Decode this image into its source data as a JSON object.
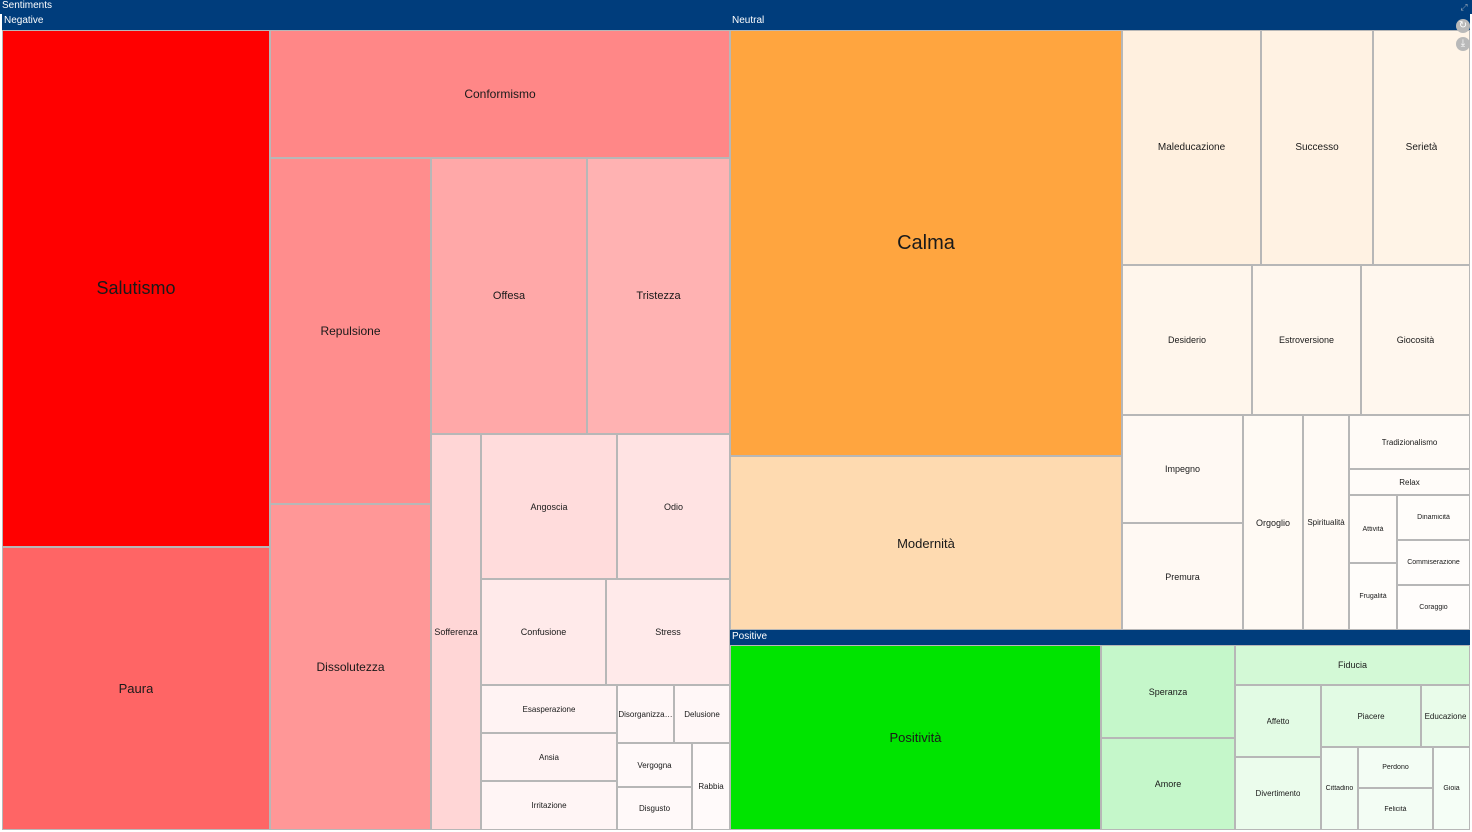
{
  "header": {
    "title": "Sentiments"
  },
  "controls": {
    "expand_icon": "expand-icon",
    "refresh_icon": "refresh-icon",
    "download_icon": "download-icon"
  },
  "groups": [
    {
      "key": "negative",
      "label": "Negative",
      "color": "#ff0000"
    },
    {
      "key": "neutral",
      "label": "Neutral",
      "color": "#ffa53f"
    },
    {
      "key": "positive",
      "label": "Positive",
      "color": "#00e400"
    }
  ],
  "chart_data": {
    "type": "treemap",
    "title": "Sentiments",
    "groups": [
      {
        "name": "Negative",
        "items": [
          {
            "label": "Salutismo",
            "value": 13855,
            "color": "#ff0000"
          },
          {
            "label": "Paura",
            "value": 7511,
            "color": "#ff6565"
          },
          {
            "label": "Conformismo",
            "value": 5916,
            "color": "#ff8787"
          },
          {
            "label": "Repulsione",
            "value": 5588,
            "color": "#ff8d8d"
          },
          {
            "label": "Dissolutezza",
            "value": 5233,
            "color": "#ff9797"
          },
          {
            "label": "Offesa",
            "value": 4285,
            "color": "#ffa8a8"
          },
          {
            "label": "Tristezza",
            "value": 3962,
            "color": "#ffb2b2"
          },
          {
            "label": "Sofferenza",
            "value": 1991,
            "color": "#ffd6d6"
          },
          {
            "label": "Angoscia",
            "value": 1956,
            "color": "#ffdcdc"
          },
          {
            "label": "Odio",
            "value": 1639,
            "color": "#ffe3e3"
          },
          {
            "label": "Confusione",
            "value": 1313,
            "color": "#ffeaea"
          },
          {
            "label": "Stress",
            "value": 1309,
            "color": "#ffeaea"
          },
          {
            "label": "Esasperazione",
            "value": 650,
            "color": "#fff3f3"
          },
          {
            "label": "Ansia",
            "value": 650,
            "color": "#fff3f3"
          },
          {
            "label": "Irritazione",
            "value": 650,
            "color": "#fff5f5"
          },
          {
            "label": "Disorganizza…",
            "value": 330,
            "color": "#fff7f7"
          },
          {
            "label": "Delusione",
            "value": 330,
            "color": "#fff7f7"
          },
          {
            "label": "Vergogna",
            "value": 280,
            "color": "#fff9f9"
          },
          {
            "label": "Disgusto",
            "value": 280,
            "color": "#fff9f9"
          },
          {
            "label": "Rabbia",
            "value": 200,
            "color": "#fffafa"
          }
        ]
      },
      {
        "name": "Neutral",
        "items": [
          {
            "label": "Calma",
            "value": 12517,
            "color": "#ffa53f"
          },
          {
            "label": "Modernità",
            "value": 5468,
            "color": "#fedab0"
          },
          {
            "label": "Maleducazione",
            "value": 2434,
            "color": "#fff0df"
          },
          {
            "label": "Successo",
            "value": 1948,
            "color": "#fff2e3"
          },
          {
            "label": "Serietà",
            "value": 1834,
            "color": "#fff4e7"
          },
          {
            "label": "Desiderio",
            "value": 1465,
            "color": "#fff6ec"
          },
          {
            "label": "Estroversione",
            "value": 1227,
            "color": "#fff7ee"
          },
          {
            "label": "Giocosità",
            "value": 1235,
            "color": "#fff7ee"
          },
          {
            "label": "Impegno",
            "value": 980,
            "color": "#fff9f3"
          },
          {
            "label": "Premura",
            "value": 980,
            "color": "#fff9f3"
          },
          {
            "label": "Orgoglio",
            "value": 932,
            "color": "#fffaf4"
          },
          {
            "label": "Spiritualità",
            "value": 716,
            "color": "#fffaf5"
          },
          {
            "label": "Tradizionalismo",
            "value": 469,
            "color": "#fffbf7"
          },
          {
            "label": "Relax",
            "value": 243,
            "color": "#fffcf9"
          },
          {
            "label": "Attività",
            "value": 280,
            "color": "#fffcf9"
          },
          {
            "label": "Frugalità",
            "value": 280,
            "color": "#fffdfa"
          },
          {
            "label": "Dinamicità",
            "value": 243,
            "color": "#fffdfa"
          },
          {
            "label": "Commiserazione",
            "value": 243,
            "color": "#fffdfb"
          },
          {
            "label": "Coraggio",
            "value": 243,
            "color": "#fffdfb"
          }
        ]
      },
      {
        "name": "Positive",
        "items": [
          {
            "label": "Positività",
            "value": 3576,
            "color": "#00e400"
          },
          {
            "label": "Speranza",
            "value": 650,
            "color": "#c5f7ca"
          },
          {
            "label": "Amore",
            "value": 650,
            "color": "#c5f7ca"
          },
          {
            "label": "Fiducia",
            "value": 492,
            "color": "#d3f9d6"
          },
          {
            "label": "Affetto",
            "value": 324,
            "color": "#e2fbe4"
          },
          {
            "label": "Piacere",
            "value": 322,
            "color": "#e2fbe4"
          },
          {
            "label": "Educazione",
            "value": 172,
            "color": "#e9fcea"
          },
          {
            "label": "Divertimento",
            "value": 329,
            "color": "#ebfcec"
          },
          {
            "label": "Cittadino",
            "value": 146,
            "color": "#f1fdf2"
          },
          {
            "label": "Perdono",
            "value": 125,
            "color": "#f3fdf4"
          },
          {
            "label": "Felicità",
            "value": 125,
            "color": "#f3fdf4"
          },
          {
            "label": "Gioia",
            "value": 120,
            "color": "#f5fef6"
          }
        ]
      }
    ]
  }
}
